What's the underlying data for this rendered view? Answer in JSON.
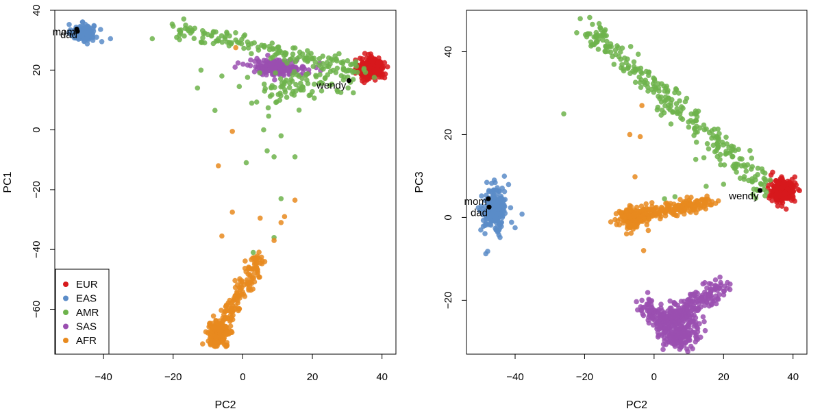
{
  "chart_data": [
    {
      "type": "scatter",
      "id": "left",
      "xlabel": "PC2",
      "ylabel": "PC1",
      "xlim": [
        -54,
        44
      ],
      "ylim": [
        -75,
        40
      ],
      "xticks": [
        -40,
        -20,
        0,
        20,
        40
      ],
      "yticks": [
        -60,
        -40,
        -20,
        0,
        20,
        40
      ],
      "xtick_labels": [
        "−40",
        "−20",
        "0",
        "20",
        "40"
      ],
      "ytick_labels": [
        "−60",
        "−40",
        "−20",
        "0",
        "20",
        "40"
      ],
      "legend": {
        "position": "bottom-left",
        "entries": [
          {
            "label": "EUR",
            "color": "#d7191c"
          },
          {
            "label": "EAS",
            "color": "#5b8cc8"
          },
          {
            "label": "AMR",
            "color": "#6db34b"
          },
          {
            "label": "SAS",
            "color": "#9a4fb0"
          },
          {
            "label": "AFR",
            "color": "#e88a1e"
          }
        ]
      },
      "clusters": [
        {
          "series": "EAS",
          "color": "#5b8cc8",
          "n": 160,
          "center": [
            -46,
            32.5
          ],
          "spread": [
            1.6,
            1.4
          ]
        },
        {
          "series": "EUR",
          "color": "#d7191c",
          "n": 280,
          "center": [
            37,
            20.5
          ],
          "spread": [
            1.8,
            1.8
          ]
        },
        {
          "series": "SAS",
          "color": "#9a4fb0",
          "n": 190,
          "center": [
            10,
            21
          ],
          "spread": [
            4.2,
            1.3
          ]
        },
        {
          "series": "AMR",
          "color": "#6db34b",
          "n": 140,
          "from": [
            -19,
            33.5
          ],
          "to": [
            33,
            21
          ],
          "spread": [
            1.2,
            1.4
          ]
        },
        {
          "series": "AMR",
          "color": "#6db34b",
          "n": 110,
          "from": [
            6,
            13
          ],
          "to": [
            32,
            19
          ],
          "spread": [
            4,
            3.2
          ]
        },
        {
          "series": "AFR",
          "color": "#e88a1e",
          "n": 180,
          "from": [
            -8,
            -71
          ],
          "to": [
            5,
            -42
          ],
          "spread": [
            1.2,
            1.4
          ]
        },
        {
          "series": "AFR",
          "color": "#e88a1e",
          "n": 160,
          "center": [
            -7,
            -68
          ],
          "spread": [
            1.5,
            2.2
          ]
        }
      ],
      "extra_points": [
        {
          "series": "EAS",
          "x": -38,
          "y": 30.5
        },
        {
          "series": "EAS",
          "x": -40.5,
          "y": 29.5
        },
        {
          "series": "EAS",
          "x": -42,
          "y": 31
        },
        {
          "series": "AMR",
          "x": -26,
          "y": 30.5
        },
        {
          "series": "AMR",
          "x": -12,
          "y": 20
        },
        {
          "series": "AMR",
          "x": -13,
          "y": 14
        },
        {
          "series": "AMR",
          "x": -8,
          "y": 6.5
        },
        {
          "series": "AMR",
          "x": -6,
          "y": 18
        },
        {
          "series": "AMR",
          "x": -1,
          "y": 14.5
        },
        {
          "series": "AMR",
          "x": 1,
          "y": -11
        },
        {
          "series": "AMR",
          "x": 6,
          "y": 0
        },
        {
          "series": "AMR",
          "x": 7,
          "y": -7
        },
        {
          "series": "AMR",
          "x": 9,
          "y": -9
        },
        {
          "series": "AMR",
          "x": 11,
          "y": -2
        },
        {
          "series": "AMR",
          "x": 15,
          "y": -9
        },
        {
          "series": "AMR",
          "x": 11,
          "y": -23
        },
        {
          "series": "AMR",
          "x": 3,
          "y": -41
        },
        {
          "series": "AMR",
          "x": 9,
          "y": -36
        },
        {
          "series": "AFR",
          "x": -2,
          "y": 27.5
        },
        {
          "series": "AFR",
          "x": -3,
          "y": -0.5
        },
        {
          "series": "AFR",
          "x": -7,
          "y": -12
        },
        {
          "series": "AFR",
          "x": -3,
          "y": -27.5
        },
        {
          "series": "AFR",
          "x": 5,
          "y": -29.5
        },
        {
          "series": "AFR",
          "x": 11,
          "y": -31
        },
        {
          "series": "AFR",
          "x": 12,
          "y": -29
        },
        {
          "series": "AFR",
          "x": 15,
          "y": -23.5
        },
        {
          "series": "AFR",
          "x": -6,
          "y": -35.5
        },
        {
          "series": "AFR",
          "x": 9,
          "y": -37
        }
      ],
      "labeled_points": [
        {
          "label": "mom",
          "x": -47.7,
          "y": 33.7,
          "anchor": "end",
          "dx": -2,
          "dy": 9
        },
        {
          "label": "dad",
          "x": -47.5,
          "y": 33.0,
          "anchor": "end",
          "dx": 0,
          "dy": 10
        },
        {
          "label": "wendy",
          "x": 30.5,
          "y": 16.5,
          "anchor": "end",
          "dx": -4,
          "dy": 12
        }
      ]
    },
    {
      "type": "scatter",
      "id": "right",
      "xlabel": "PC2",
      "ylabel": "PC3",
      "xlim": [
        -54,
        44
      ],
      "ylim": [
        -33,
        50
      ],
      "xticks": [
        -40,
        -20,
        0,
        20,
        40
      ],
      "yticks": [
        -20,
        0,
        20,
        40
      ],
      "xtick_labels": [
        "−40",
        "−20",
        "0",
        "20",
        "40"
      ],
      "ytick_labels": [
        "−20",
        "0",
        "20",
        "40"
      ],
      "clusters": [
        {
          "series": "EAS",
          "color": "#5b8cc8",
          "n": 260,
          "center": [
            -46,
            2
          ],
          "spread": [
            1.5,
            2.6
          ]
        },
        {
          "series": "EUR",
          "color": "#d7191c",
          "n": 260,
          "center": [
            37,
            6.5
          ],
          "spread": [
            1.9,
            1.4
          ]
        },
        {
          "series": "AMR",
          "color": "#6db34b",
          "n": 280,
          "from": [
            -20,
            46
          ],
          "to": [
            33,
            7
          ],
          "spread": [
            1.4,
            1.8
          ]
        },
        {
          "series": "AFR",
          "color": "#e88a1e",
          "n": 240,
          "from": [
            -9,
            0
          ],
          "to": [
            15,
            3.5
          ],
          "spread": [
            1.6,
            0.9
          ]
        },
        {
          "series": "AFR",
          "color": "#e88a1e",
          "n": 120,
          "center": [
            -6,
            0
          ],
          "spread": [
            2.2,
            1.2
          ]
        },
        {
          "series": "SAS",
          "color": "#9a4fb0",
          "n": 170,
          "from": [
            3,
            -25
          ],
          "to": [
            21,
            -16
          ],
          "spread": [
            1.3,
            1.3
          ]
        },
        {
          "series": "SAS",
          "color": "#9a4fb0",
          "n": 170,
          "from": [
            -3,
            -21
          ],
          "to": [
            9,
            -31
          ],
          "spread": [
            1.4,
            1.4
          ]
        },
        {
          "series": "SAS",
          "color": "#9a4fb0",
          "n": 150,
          "center": [
            8,
            -27
          ],
          "spread": [
            2.8,
            2.2
          ]
        }
      ],
      "extra_points": [
        {
          "series": "EAS",
          "x": -38,
          "y": 0.8
        },
        {
          "series": "EAS",
          "x": -40,
          "y": -2.5
        },
        {
          "series": "AMR",
          "x": -26,
          "y": 25
        },
        {
          "series": "AMR",
          "x": 15,
          "y": 7.5
        },
        {
          "series": "AMR",
          "x": 20,
          "y": 8
        },
        {
          "series": "AMR",
          "x": 6,
          "y": 5
        },
        {
          "series": "AMR",
          "x": 3,
          "y": 4.5
        },
        {
          "series": "AMR",
          "x": 12,
          "y": 14
        },
        {
          "series": "AFR",
          "x": -3.5,
          "y": 27
        },
        {
          "series": "AFR",
          "x": -7,
          "y": 20
        },
        {
          "series": "AFR",
          "x": -4,
          "y": 19.5
        },
        {
          "series": "AFR",
          "x": -5.5,
          "y": 9.8
        },
        {
          "series": "AFR",
          "x": -3,
          "y": -8
        },
        {
          "series": "AFR",
          "x": 18.5,
          "y": 4
        },
        {
          "series": "AFR",
          "x": 14.5,
          "y": 3.5
        },
        {
          "series": "SAS",
          "x": -3.5,
          "y": -20
        }
      ],
      "labeled_points": [
        {
          "label": "mom",
          "x": -47.7,
          "y": 4.5,
          "anchor": "end",
          "dx": -2,
          "dy": 9
        },
        {
          "label": "dad",
          "x": -47.5,
          "y": 2.5,
          "anchor": "end",
          "dx": -2,
          "dy": 13
        },
        {
          "label": "wendy",
          "x": 30.5,
          "y": 6.5,
          "anchor": "end",
          "dx": -2,
          "dy": 13
        }
      ]
    }
  ]
}
